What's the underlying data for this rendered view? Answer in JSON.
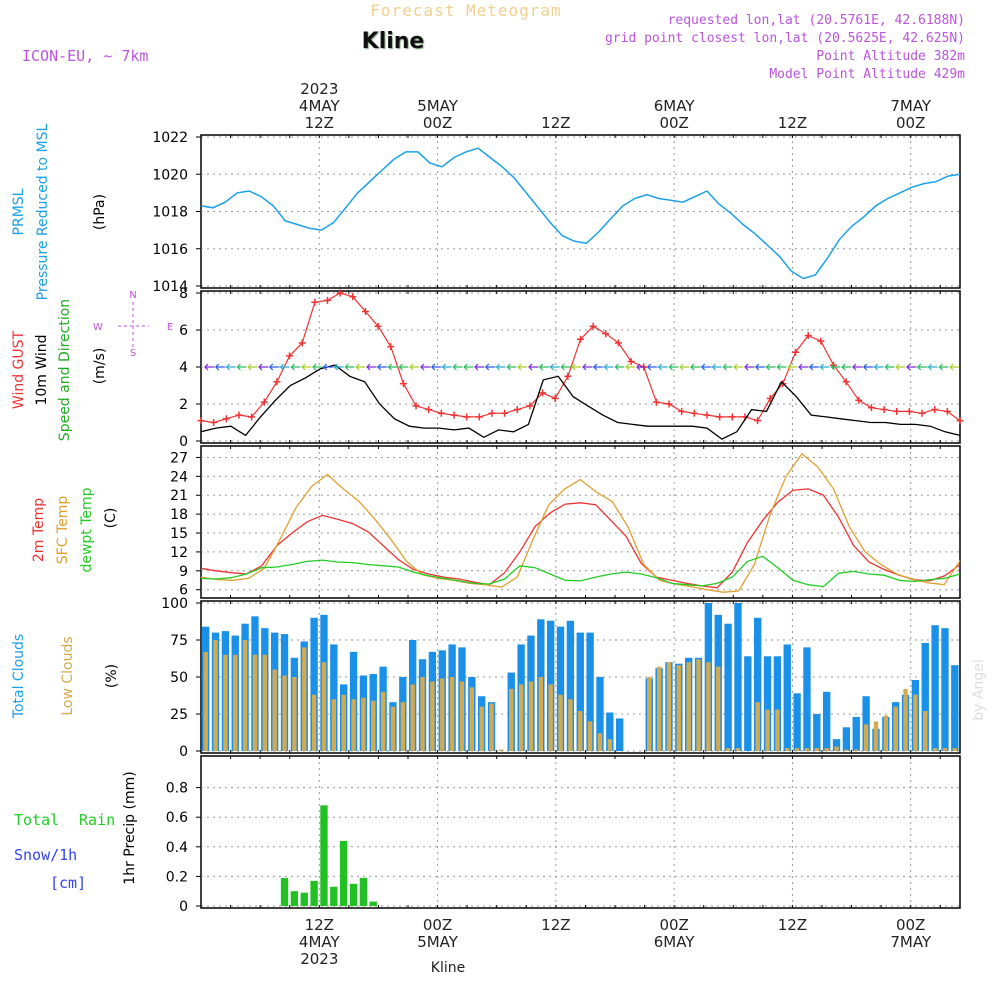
{
  "header": {
    "title": "Forecast Meteogram",
    "location": "Kline",
    "model": "ICON-EU, ~ 7km",
    "requested": "requested lon,lat (20.5761E, 42.6188N)",
    "gridpoint": "grid point closest lon,lat (20.5625E, 42.625N)",
    "point_alt": "Point Altitude 382m",
    "model_alt": "Model Point Altitude 429m",
    "bottom_location": "Kline",
    "watermark": "by Angel"
  },
  "time_axis": {
    "top_labels": [
      {
        "lines": [
          "2023",
          "4MAY",
          "12Z"
        ],
        "x_hour": 12
      },
      {
        "lines": [
          "5MAY",
          "00Z"
        ],
        "x_hour": 24
      },
      {
        "lines": [
          "12Z"
        ],
        "x_hour": 36
      },
      {
        "lines": [
          "6MAY",
          "00Z"
        ],
        "x_hour": 48
      },
      {
        "lines": [
          "12Z"
        ],
        "x_hour": 60
      },
      {
        "lines": [
          "7MAY",
          "00Z"
        ],
        "x_hour": 72
      }
    ],
    "bottom_labels": [
      {
        "lines": [
          "12Z",
          "4MAY",
          "2023"
        ],
        "x_hour": 12
      },
      {
        "lines": [
          "00Z",
          "5MAY"
        ],
        "x_hour": 24
      },
      {
        "lines": [
          "12Z"
        ],
        "x_hour": 36
      },
      {
        "lines": [
          "00Z",
          "6MAY"
        ],
        "x_hour": 48
      },
      {
        "lines": [
          "12Z"
        ],
        "x_hour": 60
      },
      {
        "lines": [
          "00Z",
          "7MAY"
        ],
        "x_hour": 72
      }
    ]
  },
  "colors": {
    "pressure": "#1aa0e8",
    "gust": "#ee3333",
    "wind": "#000000",
    "temp2m": "#ee3333",
    "sfctemp": "#e0a030",
    "dewpt": "#22cc22",
    "totalcloud": "#1a90e8",
    "lowcloud": "#d4aa50",
    "rain": "#22c022",
    "title": "#f0d090",
    "info": "#bb55dd",
    "snow": "#3344ee"
  },
  "panels": {
    "pressure": {
      "labels": [
        "PRMSL",
        "Pressure Reduced to MSL",
        "(hPa)"
      ]
    },
    "wind": {
      "labels": [
        "Wind GUST",
        "10m Wind",
        "Speed and Direction",
        "(m/s)"
      ],
      "compass": [
        "N",
        "S",
        "W",
        "E"
      ]
    },
    "temp": {
      "labels": [
        "2m Temp",
        "SFC Temp",
        "dewpt Temp",
        "(C)"
      ]
    },
    "clouds": {
      "labels": [
        "Total Clouds",
        "Low Clouds",
        "(%)"
      ]
    },
    "precip": {
      "labels": [
        "Total",
        "Rain",
        "Snow/1h",
        "[cm]",
        "1hr Precip (mm)"
      ]
    }
  },
  "chart_data": [
    {
      "type": "line",
      "title": "PRMSL Pressure Reduced to MSL",
      "ylabel": "(hPa)",
      "ylim": [
        1014,
        1022
      ],
      "yticks": [
        1014,
        1016,
        1018,
        1020,
        1022
      ],
      "x_hours": [
        0,
        1,
        2,
        3,
        4,
        5,
        6,
        7,
        8,
        9,
        10,
        11,
        12,
        13,
        14,
        15,
        16,
        17,
        18,
        19,
        20,
        21,
        22,
        23,
        24,
        25,
        26,
        27,
        28,
        29,
        30,
        31,
        32,
        33,
        34,
        35,
        36,
        37,
        38,
        39,
        40,
        41,
        42,
        43,
        44,
        45,
        46,
        47,
        48,
        49,
        50,
        51,
        52,
        53,
        54,
        55,
        56,
        57,
        58,
        59,
        60,
        61,
        62,
        63,
        64,
        65,
        66,
        67,
        68,
        69,
        70,
        71,
        72,
        73,
        74,
        75,
        76,
        77
      ],
      "series": [
        {
          "name": "PRMSL",
          "values": [
            1018.3,
            1018.2,
            1018.5,
            1019.0,
            1019.1,
            1018.8,
            1018.3,
            1017.5,
            1017.3,
            1017.1,
            1017.0,
            1017.4,
            1018.2,
            1019.0,
            1019.6,
            1020.2,
            1020.8,
            1021.2,
            1021.2,
            1020.6,
            1020.4,
            1020.9,
            1021.2,
            1021.4,
            1020.9,
            1020.4,
            1019.8,
            1019.0,
            1018.2,
            1017.4,
            1016.7,
            1016.4,
            1016.3,
            1016.9,
            1017.6,
            1018.3,
            1018.7,
            1018.9,
            1018.7,
            1018.6,
            1018.5,
            1018.8,
            1019.1,
            1018.4,
            1017.9,
            1017.3,
            1016.8,
            1016.2,
            1015.6,
            1014.8,
            1014.4,
            1014.6,
            1015.5,
            1016.5,
            1017.2,
            1017.7,
            1018.3,
            1018.7,
            1019.0,
            1019.3,
            1019.5,
            1019.6,
            1019.9,
            1020.0
          ]
        }
      ]
    },
    {
      "type": "line",
      "title": "Wind GUST / 10m Wind Speed and Direction",
      "ylabel": "(m/s)",
      "ylim": [
        0,
        8
      ],
      "yticks": [
        0,
        2,
        4,
        6,
        8
      ],
      "series": [
        {
          "name": "Wind GUST",
          "values": [
            1.1,
            1.0,
            1.2,
            1.4,
            1.3,
            2.1,
            3.2,
            4.6,
            5.3,
            7.5,
            7.6,
            8.0,
            7.8,
            7.0,
            6.2,
            5.1,
            3.1,
            1.9,
            1.7,
            1.5,
            1.4,
            1.3,
            1.3,
            1.5,
            1.5,
            1.7,
            1.9,
            2.6,
            2.3,
            3.5,
            5.5,
            6.2,
            5.8,
            5.3,
            4.3,
            4.0,
            2.1,
            2.0,
            1.6,
            1.5,
            1.4,
            1.3,
            1.3,
            1.3,
            1.1,
            2.3,
            3.1,
            4.8,
            5.7,
            5.4,
            4.1,
            3.2,
            2.2,
            1.8,
            1.7,
            1.6,
            1.6,
            1.5,
            1.7,
            1.6,
            1.1
          ]
        },
        {
          "name": "10m Wind",
          "values": [
            0.5,
            0.7,
            0.8,
            0.3,
            1.3,
            2.2,
            3.0,
            3.4,
            3.9,
            4.1,
            3.5,
            3.2,
            2.0,
            1.2,
            0.8,
            0.7,
            0.7,
            0.6,
            0.7,
            0.2,
            0.6,
            0.5,
            0.9,
            3.3,
            3.5,
            2.4,
            1.9,
            1.4,
            1.0,
            0.9,
            0.8,
            0.8,
            0.8,
            0.8,
            0.7,
            0.1,
            0.5,
            1.7,
            1.6,
            3.2,
            2.4,
            1.4,
            1.3,
            1.2,
            1.1,
            1.0,
            1.0,
            0.9,
            0.9,
            0.8,
            0.5,
            0.3
          ]
        }
      ]
    },
    {
      "type": "line",
      "title": "2m Temp / SFC Temp / dewpt Temp",
      "ylabel": "(C)",
      "ylim": [
        5,
        28.5
      ],
      "yticks": [
        6,
        9,
        12,
        15,
        18,
        21,
        24,
        27
      ],
      "series": [
        {
          "name": "2m Temp",
          "values": [
            9.4,
            9.0,
            8.7,
            8.5,
            9.8,
            13.0,
            15.0,
            16.8,
            17.8,
            17.2,
            16.5,
            15.2,
            13.0,
            10.8,
            9.2,
            8.5,
            8.0,
            7.7,
            7.2,
            6.8,
            8.7,
            12.0,
            16.0,
            18.2,
            19.6,
            19.8,
            19.5,
            17.0,
            14.5,
            10.2,
            8.0,
            7.5,
            7.0,
            6.6,
            6.3,
            8.8,
            13.5,
            17.0,
            19.9,
            21.8,
            22.0,
            21.0,
            17.5,
            13.0,
            10.4,
            9.2,
            8.3,
            7.6,
            7.4,
            8.2,
            10.0
          ]
        },
        {
          "name": "SFC Temp",
          "values": [
            8.0,
            7.6,
            7.5,
            7.8,
            9.4,
            14.0,
            19.0,
            22.4,
            24.3,
            22.0,
            20.0,
            17.2,
            14.0,
            10.5,
            8.4,
            7.8,
            7.5,
            7.0,
            6.8,
            6.4,
            8.0,
            14.0,
            19.5,
            22.0,
            23.5,
            21.5,
            20.0,
            16.0,
            10.0,
            7.5,
            6.9,
            6.5,
            6.0,
            5.6,
            5.8,
            10.0,
            18.0,
            24.0,
            27.6,
            25.5,
            22.0,
            16.0,
            12.0,
            10.0,
            8.5,
            7.6,
            7.1,
            6.8,
            10.6
          ]
        },
        {
          "name": "dewpt Temp",
          "values": [
            7.8,
            7.7,
            7.9,
            8.5,
            9.5,
            9.6,
            10.0,
            10.5,
            10.7,
            10.4,
            10.3,
            10.0,
            9.8,
            9.6,
            8.8,
            8.2,
            7.8,
            7.4,
            7.0,
            6.9,
            7.7,
            9.8,
            9.5,
            8.5,
            7.5,
            7.4,
            8.0,
            8.5,
            8.8,
            8.5,
            7.9,
            7.0,
            6.8,
            6.6,
            7.0,
            8.0,
            10.5,
            11.3,
            9.5,
            7.5,
            6.8,
            6.5,
            8.6,
            8.9,
            8.5,
            8.3,
            7.5,
            7.3,
            7.6,
            7.8,
            8.5
          ]
        }
      ]
    },
    {
      "type": "bar",
      "title": "Total Clouds / Low Clouds",
      "ylabel": "(%)",
      "ylim": [
        0,
        100
      ],
      "yticks": [
        0,
        25,
        50,
        75,
        100
      ],
      "series": [
        {
          "name": "Total Clouds",
          "values": [
            84,
            80,
            81,
            78,
            86,
            91,
            83,
            80,
            79,
            63,
            74,
            90,
            92,
            72,
            45,
            67,
            51,
            52,
            57,
            33,
            50,
            75,
            62,
            67,
            68,
            72,
            70,
            50,
            37,
            33,
            0,
            53,
            72,
            78,
            89,
            88,
            84,
            88,
            80,
            80,
            50,
            26,
            22,
            0,
            0,
            49,
            56,
            60,
            59,
            63,
            63,
            100,
            92,
            86,
            100,
            64,
            90,
            64,
            64,
            72,
            39,
            70,
            25,
            40,
            8,
            16,
            23,
            37,
            15,
            23,
            33,
            38,
            48,
            73,
            85,
            83,
            58
          ]
        },
        {
          "name": "Low Clouds",
          "values": [
            67,
            75,
            65,
            65,
            75,
            65,
            65,
            55,
            51,
            50,
            70,
            38,
            60,
            35,
            38,
            35,
            36,
            34,
            40,
            30,
            33,
            45,
            50,
            47,
            49,
            50,
            47,
            43,
            30,
            32,
            1,
            42,
            45,
            47,
            50,
            45,
            38,
            35,
            27,
            20,
            12,
            8,
            0,
            0,
            0,
            50,
            57,
            60,
            58,
            60,
            62,
            60,
            57,
            2,
            2,
            0,
            33,
            28,
            28,
            2,
            2,
            2,
            2,
            2,
            3,
            1,
            1,
            18,
            20,
            24,
            30,
            42,
            38,
            27,
            2,
            2,
            2
          ]
        }
      ]
    },
    {
      "type": "bar",
      "title": "Total Rain Snow/1h",
      "ylabel": "1hr Precip (mm)",
      "ylim": [
        0,
        1
      ],
      "yticks": [
        0,
        0.2,
        0.4,
        0.6,
        0.8
      ],
      "series": [
        {
          "name": "Total Rain",
          "values": [
            0,
            0,
            0,
            0,
            0,
            0,
            0,
            0,
            0.19,
            0.1,
            0.09,
            0.17,
            0.68,
            0.13,
            0.44,
            0.15,
            0.19,
            0.03
          ]
        }
      ]
    }
  ]
}
